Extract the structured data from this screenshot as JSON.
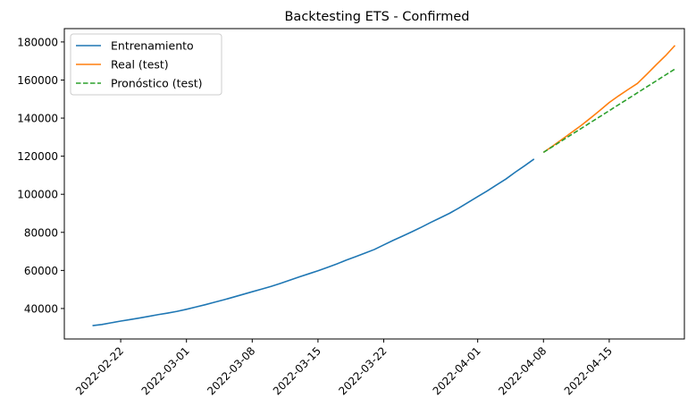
{
  "chart_data": {
    "type": "line",
    "title": "Backtesting ETS - Confirmed",
    "xlabel": "",
    "ylabel": "",
    "xlim": [
      "2022-02-16",
      "2022-04-23"
    ],
    "ylim": [
      24000,
      187000
    ],
    "yticks": [
      40000,
      60000,
      80000,
      100000,
      120000,
      140000,
      160000,
      180000
    ],
    "xticks": [
      "2022-02-22",
      "2022-03-01",
      "2022-03-08",
      "2022-03-15",
      "2022-03-22",
      "2022-04-01",
      "2022-04-08",
      "2022-04-15"
    ],
    "grid": false,
    "legend": "top-left",
    "series": [
      {
        "name": "Entrenamiento",
        "color": "#1f77b4",
        "style": "solid",
        "points": [
          [
            "2022-02-19",
            31000
          ],
          [
            "2022-02-20",
            31600
          ],
          [
            "2022-02-21",
            32500
          ],
          [
            "2022-02-22",
            33400
          ],
          [
            "2022-02-23",
            34200
          ],
          [
            "2022-02-24",
            35000
          ],
          [
            "2022-02-25",
            35900
          ],
          [
            "2022-02-26",
            36800
          ],
          [
            "2022-02-27",
            37600
          ],
          [
            "2022-02-28",
            38500
          ],
          [
            "2022-03-01",
            39600
          ],
          [
            "2022-03-02",
            40800
          ],
          [
            "2022-03-03",
            42000
          ],
          [
            "2022-03-04",
            43300
          ],
          [
            "2022-03-05",
            44600
          ],
          [
            "2022-03-06",
            46000
          ],
          [
            "2022-03-07",
            47400
          ],
          [
            "2022-03-08",
            48800
          ],
          [
            "2022-03-09",
            50200
          ],
          [
            "2022-03-10",
            51600
          ],
          [
            "2022-03-11",
            53200
          ],
          [
            "2022-03-12",
            54900
          ],
          [
            "2022-03-13",
            56600
          ],
          [
            "2022-03-14",
            58200
          ],
          [
            "2022-03-15",
            59800
          ],
          [
            "2022-03-16",
            61600
          ],
          [
            "2022-03-17",
            63400
          ],
          [
            "2022-03-18",
            65400
          ],
          [
            "2022-03-19",
            67200
          ],
          [
            "2022-03-20",
            69100
          ],
          [
            "2022-03-21",
            71000
          ],
          [
            "2022-03-22",
            73400
          ],
          [
            "2022-03-23",
            75800
          ],
          [
            "2022-03-24",
            78000
          ],
          [
            "2022-03-25",
            80300
          ],
          [
            "2022-03-26",
            82700
          ],
          [
            "2022-03-27",
            85200
          ],
          [
            "2022-03-28",
            87600
          ],
          [
            "2022-03-29",
            90000
          ],
          [
            "2022-03-30",
            92800
          ],
          [
            "2022-03-31",
            95800
          ],
          [
            "2022-04-01",
            98800
          ],
          [
            "2022-04-02",
            101700
          ],
          [
            "2022-04-03",
            104900
          ],
          [
            "2022-04-04",
            108000
          ],
          [
            "2022-04-05",
            111600
          ],
          [
            "2022-04-06",
            115000
          ],
          [
            "2022-04-07",
            118500
          ]
        ]
      },
      {
        "name": "Real (test)",
        "color": "#ff7f0e",
        "style": "solid",
        "points": [
          [
            "2022-04-08",
            122000
          ],
          [
            "2022-04-09",
            125400
          ],
          [
            "2022-04-10",
            128900
          ],
          [
            "2022-04-11",
            132500
          ],
          [
            "2022-04-12",
            136100
          ],
          [
            "2022-04-13",
            140000
          ],
          [
            "2022-04-14",
            144000
          ],
          [
            "2022-04-15",
            148200
          ],
          [
            "2022-04-16",
            151700
          ],
          [
            "2022-04-17",
            155000
          ],
          [
            "2022-04-18",
            158200
          ],
          [
            "2022-04-19",
            163000
          ],
          [
            "2022-04-20",
            168000
          ],
          [
            "2022-04-21",
            172800
          ],
          [
            "2022-04-22",
            178200
          ]
        ]
      },
      {
        "name": "Pronóstico (test)",
        "color": "#2ca02c",
        "style": "dashed",
        "points": [
          [
            "2022-04-08",
            122000
          ],
          [
            "2022-04-22",
            165800
          ]
        ]
      }
    ]
  }
}
